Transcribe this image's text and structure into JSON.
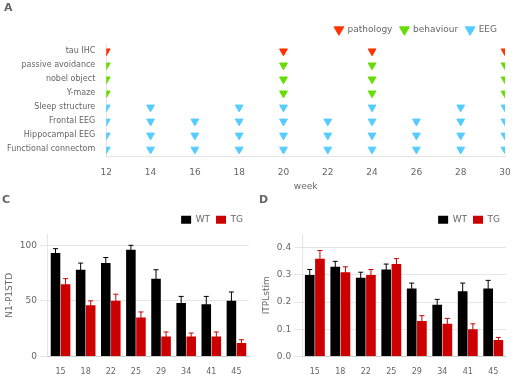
{
  "chart_data": [
    {
      "type": "scatter",
      "title": "A",
      "xlabel": "week",
      "xlim": [
        12,
        30
      ],
      "xticks": [
        12,
        14,
        16,
        18,
        20,
        22,
        24,
        26,
        28,
        30
      ],
      "grid": false,
      "legend": "upper right",
      "categories": [
        "tau IHC",
        "passive avoidance",
        "nobel object",
        "Y-maze",
        "Sleep structure",
        "Frontal EEG",
        "Hippocampal EEG",
        "Functional connectom"
      ],
      "marker": "triangle_down",
      "series": [
        {
          "name": "pathology",
          "color": "#ff3300",
          "x": [
            12,
            20,
            24,
            30
          ],
          "y": [
            "tau IHC",
            "tau IHC",
            "tau IHC",
            "tau IHC"
          ]
        },
        {
          "name": "behaviour",
          "color": "#66dd00",
          "x": [
            12,
            20,
            24,
            30,
            12,
            20,
            24,
            30,
            12,
            20,
            24,
            30
          ],
          "y": [
            "passive avoidance",
            "passive avoidance",
            "passive avoidance",
            "passive avoidance",
            "nobel object",
            "nobel object",
            "nobel object",
            "nobel object",
            "Y-maze",
            "Y-maze",
            "Y-maze",
            "Y-maze"
          ]
        },
        {
          "name": "EEG",
          "color": "#55ccff",
          "x": [
            12,
            14,
            18,
            20,
            24,
            28,
            30,
            12,
            14,
            16,
            18,
            20,
            22,
            24,
            26,
            28,
            30,
            12,
            14,
            16,
            18,
            20,
            22,
            24,
            26,
            28,
            30,
            12,
            14,
            16,
            18,
            20,
            22,
            24,
            26,
            28,
            30
          ],
          "y": [
            "Sleep structure",
            "Sleep structure",
            "Sleep structure",
            "Sleep structure",
            "Sleep structure",
            "Sleep structure",
            "Sleep structure",
            "Frontal EEG",
            "Frontal EEG",
            "Frontal EEG",
            "Frontal EEG",
            "Frontal EEG",
            "Frontal EEG",
            "Frontal EEG",
            "Frontal EEG",
            "Frontal EEG",
            "Frontal EEG",
            "Hippocampal EEG",
            "Hippocampal EEG",
            "Hippocampal EEG",
            "Hippocampal EEG",
            "Hippocampal EEG",
            "Hippocampal EEG",
            "Hippocampal EEG",
            "Hippocampal EEG",
            "Hippocampal EEG",
            "Hippocampal EEG",
            "Functional connectom",
            "Functional connectom",
            "Functional connectom",
            "Functional connectom",
            "Functional connectom",
            "Functional connectom",
            "Functional connectom",
            "Functional connectom",
            "Functional connectom",
            "Functional connectom"
          ]
        }
      ]
    },
    {
      "type": "bar",
      "title": "C",
      "ylabel": "N1-P1STD",
      "categories": [
        15,
        18,
        22,
        25,
        29,
        34,
        41,
        45
      ],
      "ylim": [
        0,
        110
      ],
      "yticks": [
        0,
        50,
        100
      ],
      "grid": true,
      "legend": "upper right",
      "series": [
        {
          "name": "WT",
          "color": "#000000",
          "values": [
            93,
            78,
            84,
            96,
            70,
            48,
            47,
            50
          ],
          "errors": [
            4,
            6,
            5,
            4,
            8,
            6,
            7,
            8
          ]
        },
        {
          "name": "TG",
          "color": "#cc0000",
          "values": [
            65,
            46,
            50,
            35,
            18,
            18,
            18,
            12
          ],
          "errors": [
            5,
            4,
            6,
            5,
            4,
            3,
            4,
            3
          ]
        }
      ]
    },
    {
      "type": "bar",
      "title": "D",
      "ylabel": "ITPLstim",
      "categories": [
        15,
        18,
        22,
        25,
        29,
        34,
        41,
        45
      ],
      "ylim": [
        0,
        0.45
      ],
      "yticks": [
        {
          "value": 0,
          "label": "0.0"
        },
        0.1,
        0.2,
        0.3,
        0.4
      ],
      "grid": true,
      "legend": "upper right",
      "series": [
        {
          "name": "WT",
          "color": "#000000",
          "values": [
            0.3,
            0.33,
            0.29,
            0.32,
            0.25,
            0.19,
            0.24,
            0.25
          ],
          "errors": [
            0.02,
            0.02,
            0.02,
            0.02,
            0.02,
            0.02,
            0.03,
            0.03
          ]
        },
        {
          "name": "TG",
          "color": "#cc0000",
          "values": [
            0.36,
            0.31,
            0.3,
            0.34,
            0.13,
            0.12,
            0.1,
            0.06
          ],
          "errors": [
            0.03,
            0.02,
            0.02,
            0.02,
            0.02,
            0.02,
            0.02,
            0.01
          ]
        }
      ]
    }
  ]
}
